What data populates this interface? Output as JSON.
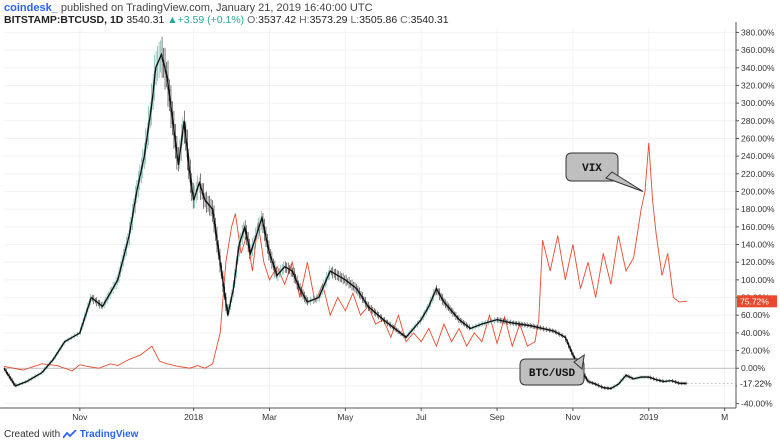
{
  "header": {
    "user": "coindesk_",
    "published": "published on TradingView.com, January 21, 2019 16:40:00 UTC",
    "symbol": "BITSTAMP:BTCUSD, 1D",
    "last": "3540.31",
    "change_arrow": "▲",
    "change": "+3.59 (+0.1%)",
    "o_label": "O:",
    "o": "3537.42",
    "h_label": "H:",
    "h": "3573.29",
    "l_label": "L:",
    "l": "3505.86",
    "c_label": "C:",
    "c": "3540.31"
  },
  "footer": {
    "prefix": "Created with",
    "brand": "TradingView",
    "icon": "tradingview-logo-icon"
  },
  "colors": {
    "vix": "#e8492f",
    "btc": "#111111",
    "candle_up": "#5aa79c",
    "candle_down": "#222222",
    "grid": "#f2f2f2",
    "zero_line": "#b0b0b0"
  },
  "chart_data": {
    "type": "line",
    "yaxis": {
      "position": "right",
      "unit": "%",
      "ylim": [
        -45,
        385
      ],
      "ticks": [
        380,
        360,
        340,
        320,
        300,
        280,
        260,
        240,
        220,
        200,
        180,
        160,
        140,
        120,
        100,
        80,
        60,
        40,
        20,
        0,
        -20,
        -40
      ],
      "tick_labels": [
        "380.00%",
        "360.00%",
        "340.00%",
        "320.00%",
        "300.00%",
        "280.00%",
        "260.00%",
        "240.00%",
        "220.00%",
        "200.00%",
        "180.00%",
        "160.00%",
        "140.00%",
        "120.00%",
        "100.00%",
        "80.00%",
        "60.00%",
        "40.00%",
        "20.00%",
        "0.00%",
        "-20.00%",
        "-40.00%"
      ]
    },
    "xaxis": {
      "labels": [
        "Nov",
        "2018",
        "Mar",
        "May",
        "Jul",
        "Sep",
        "Nov",
        "2019",
        "M"
      ],
      "label_pos": [
        1.0,
        4.0,
        6.0,
        8.0,
        10.0,
        12.0,
        14.0,
        16.0,
        18.0
      ],
      "xlim": [
        -1.0,
        18.3
      ]
    },
    "grid": true,
    "series": [
      {
        "name": "VIX",
        "final_label": "75.72%",
        "x": [
          -1.0,
          -0.5,
          0.0,
          0.4,
          0.8,
          1.0,
          1.2,
          1.5,
          1.8,
          2.0,
          2.3,
          2.6,
          2.9,
          3.1,
          3.3,
          3.6,
          3.9,
          4.1,
          4.3,
          4.5,
          4.7,
          4.85,
          5.0,
          5.1,
          5.25,
          5.4,
          5.55,
          5.7,
          5.85,
          6.0,
          6.2,
          6.4,
          6.6,
          6.8,
          7.0,
          7.2,
          7.4,
          7.6,
          7.8,
          8.0,
          8.2,
          8.4,
          8.6,
          8.8,
          9.0,
          9.2,
          9.4,
          9.6,
          9.8,
          10.0,
          10.2,
          10.4,
          10.6,
          10.8,
          11.0,
          11.2,
          11.4,
          11.6,
          11.8,
          12.0,
          12.2,
          12.4,
          12.6,
          12.8,
          13.0,
          13.1,
          13.2,
          13.4,
          13.6,
          13.8,
          14.0,
          14.2,
          14.4,
          14.6,
          14.8,
          15.0,
          15.2,
          15.4,
          15.6,
          15.8,
          15.9,
          16.0,
          16.1,
          16.2,
          16.35,
          16.5,
          16.65,
          16.8,
          17.0
        ],
        "y": [
          2,
          -2,
          5,
          3,
          -3,
          4,
          2,
          0,
          5,
          3,
          10,
          15,
          25,
          8,
          5,
          2,
          0,
          3,
          0,
          5,
          40,
          120,
          160,
          175,
          130,
          150,
          110,
          165,
          120,
          100,
          115,
          95,
          120,
          80,
          120,
          75,
          95,
          60,
          80,
          65,
          85,
          60,
          70,
          50,
          55,
          35,
          60,
          30,
          40,
          30,
          45,
          25,
          50,
          30,
          45,
          25,
          40,
          30,
          60,
          28,
          58,
          25,
          50,
          25,
          30,
          55,
          145,
          110,
          150,
          100,
          140,
          90,
          120,
          80,
          130,
          95,
          150,
          110,
          125,
          180,
          200,
          255,
          190,
          150,
          105,
          130,
          80,
          75,
          75.72
        ]
      },
      {
        "name": "BTC/USD",
        "final_label": "-17.22%",
        "x": [
          -1.0,
          -0.7,
          -0.4,
          0.0,
          0.3,
          0.6,
          1.0,
          1.3,
          1.6,
          2.0,
          2.3,
          2.5,
          2.7,
          2.9,
          3.0,
          3.15,
          3.3,
          3.45,
          3.6,
          3.75,
          3.9,
          4.0,
          4.15,
          4.3,
          4.5,
          4.7,
          4.9,
          5.05,
          5.2,
          5.35,
          5.5,
          5.65,
          5.8,
          6.0,
          6.2,
          6.4,
          6.6,
          6.8,
          7.0,
          7.3,
          7.6,
          8.0,
          8.3,
          8.6,
          9.0,
          9.3,
          9.6,
          10.0,
          10.2,
          10.4,
          10.6,
          10.8,
          11.0,
          11.3,
          11.6,
          12.0,
          12.3,
          12.6,
          12.9,
          13.2,
          13.5,
          13.8,
          14.0,
          14.2,
          14.4,
          14.6,
          14.8,
          15.0,
          15.2,
          15.4,
          15.6,
          15.8,
          16.0,
          16.2,
          16.4,
          16.6,
          16.8,
          17.0
        ],
        "y": [
          0,
          -20,
          -15,
          -5,
          10,
          30,
          40,
          80,
          70,
          100,
          150,
          200,
          240,
          300,
          340,
          355,
          330,
          280,
          230,
          280,
          220,
          190,
          210,
          190,
          180,
          120,
          60,
          90,
          140,
          160,
          130,
          150,
          170,
          130,
          105,
          115,
          110,
          90,
          75,
          80,
          110,
          100,
          90,
          70,
          55,
          45,
          35,
          55,
          70,
          90,
          75,
          65,
          55,
          45,
          50,
          55,
          52,
          50,
          48,
          45,
          42,
          35,
          15,
          0,
          -15,
          -18,
          -22,
          -23,
          -18,
          -8,
          -12,
          -10,
          -10,
          -13,
          -15,
          -14,
          -17,
          -17.22
        ]
      }
    ],
    "annotations": [
      {
        "text": "VIX",
        "target": [
          15.85,
          200
        ]
      },
      {
        "text": "BTC/USD",
        "target": [
          14.3,
          15
        ]
      }
    ]
  }
}
